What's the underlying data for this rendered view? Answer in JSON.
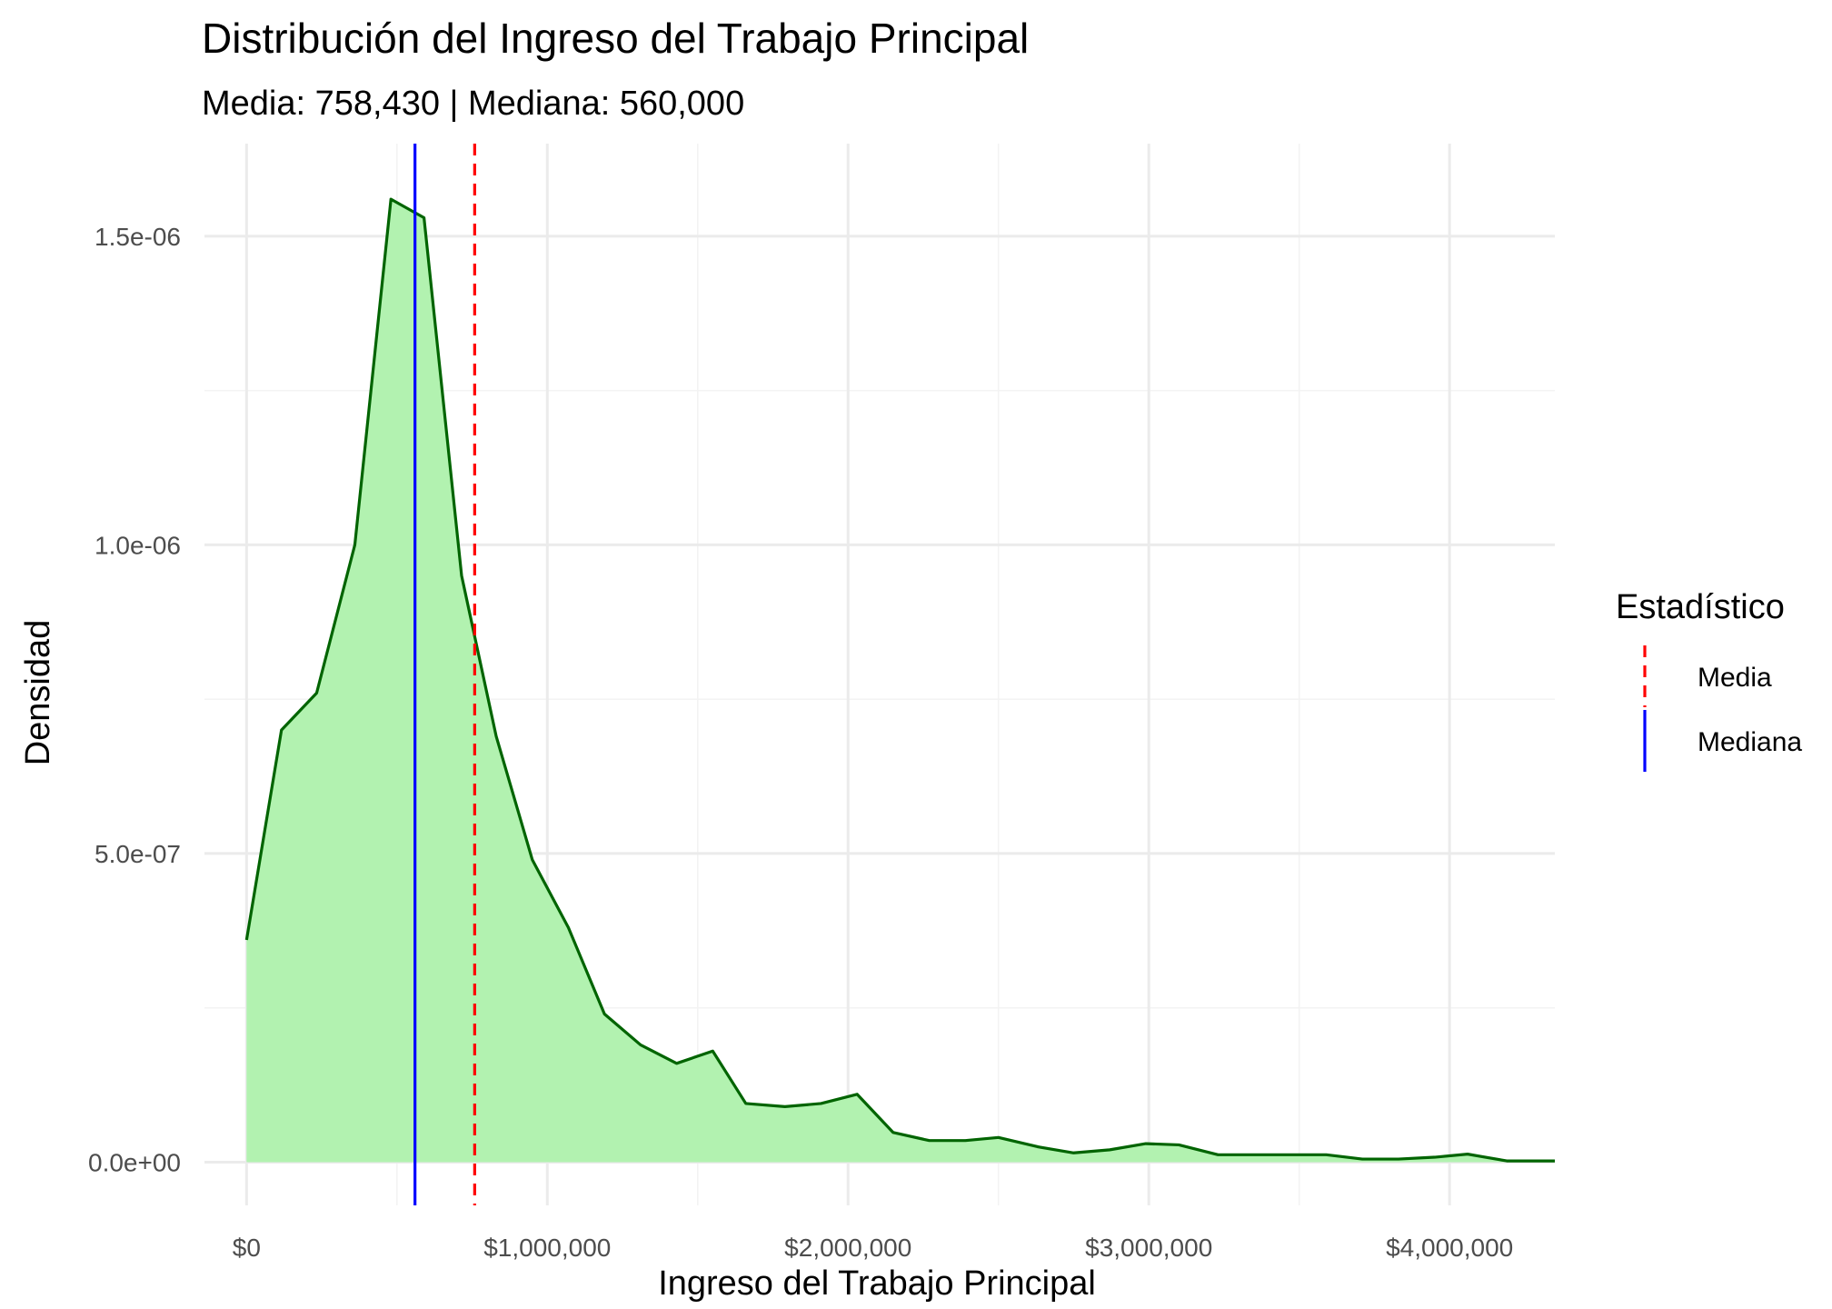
{
  "chart_data": {
    "type": "area",
    "title": "Distribución del Ingreso del Trabajo Principal",
    "subtitle": "Media: 758,430 | Mediana: 560,000",
    "xlabel": "Ingreso del Trabajo Principal",
    "ylabel": "Densidad",
    "xlim": [
      -140000,
      4350000
    ],
    "ylim": [
      -7e-08,
      1.65e-06
    ],
    "x_ticks": [
      0,
      1000000,
      2000000,
      3000000,
      4000000
    ],
    "x_tick_labels": [
      "$0",
      "$1,000,000",
      "$2,000,000",
      "$3,000,000",
      "$4,000,000"
    ],
    "y_ticks": [
      0,
      5e-07,
      1e-06,
      1.5e-06
    ],
    "y_tick_labels": [
      "0.0e+00",
      "5.0e-07",
      "1.0e-06",
      "1.5e-06"
    ],
    "grid": true,
    "fill_color": "#b2f2b0",
    "line_color": "#006400",
    "x": [
      0,
      116000,
      233000,
      360000,
      480000,
      590000,
      715000,
      830000,
      950000,
      1070000,
      1190000,
      1310000,
      1430000,
      1550000,
      1660000,
      1790000,
      1910000,
      2030000,
      2150000,
      2270000,
      2390000,
      2500000,
      2630000,
      2750000,
      2870000,
      2990000,
      3100000,
      3230000,
      3350000,
      3470000,
      3590000,
      3710000,
      3830000,
      3950000,
      4060000,
      4190000,
      4350000
    ],
    "y": [
      3.6e-07,
      7e-07,
      7.6e-07,
      1e-06,
      1.56e-06,
      1.53e-06,
      9.5e-07,
      6.9e-07,
      4.9e-07,
      3.8e-07,
      2.4e-07,
      1.9e-07,
      1.6e-07,
      1.8e-07,
      9.5e-08,
      9e-08,
      9.5e-08,
      1.1e-07,
      4.8e-08,
      3.5e-08,
      3.5e-08,
      4e-08,
      2.5e-08,
      1.5e-08,
      2e-08,
      3e-08,
      2.8e-08,
      1.2e-08,
      1.2e-08,
      1.2e-08,
      1.2e-08,
      5e-09,
      5e-09,
      8e-09,
      1.3e-08,
      2e-09,
      2e-09
    ],
    "reference_lines": [
      {
        "name": "Media",
        "x": 758430,
        "color": "#ff0000",
        "style": "dashed"
      },
      {
        "name": "Mediana",
        "x": 560000,
        "color": "#0000ff",
        "style": "solid"
      }
    ],
    "legend": {
      "title": "Estadístico",
      "placement": "right",
      "items": [
        {
          "label": "Media",
          "color": "#ff0000",
          "style": "dashed"
        },
        {
          "label": "Mediana",
          "color": "#0000ff",
          "style": "solid"
        }
      ]
    }
  }
}
